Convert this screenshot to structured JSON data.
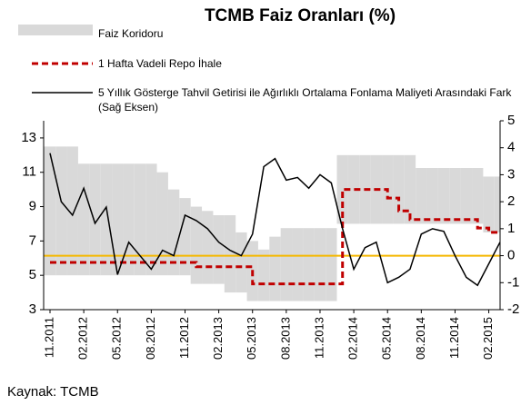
{
  "chart_data": {
    "type": "line",
    "title": "TCMB Faiz Oranları (%)",
    "source": "Kaynak: TCMB",
    "categories": [
      "11.2011",
      null,
      null,
      "02.2012",
      null,
      null,
      "05.2012",
      null,
      null,
      "08.2012",
      null,
      null,
      "11.2012",
      null,
      null,
      "02.2013",
      null,
      null,
      "05.2013",
      null,
      null,
      "08.2013",
      null,
      null,
      "11.2013",
      null,
      null,
      "02.2014",
      null,
      null,
      "05.2014",
      null,
      null,
      "08.2014",
      null,
      null,
      "11.2014",
      null,
      null,
      "02.2015",
      null
    ],
    "series": [
      {
        "name": "Faiz Koridoru",
        "kind": "band",
        "color": "#d9d9d9",
        "low": [
          5,
          5,
          5,
          5,
          5,
          5,
          5,
          5,
          5,
          5,
          5,
          5,
          5,
          4.5,
          4.5,
          4.5,
          4,
          4,
          3.5,
          3.5,
          3.5,
          3.5,
          3.5,
          3.5,
          3.5,
          3.5,
          8,
          8,
          8,
          8,
          8,
          8,
          8,
          8,
          8,
          8,
          8,
          8,
          8,
          7.5,
          7.5
        ],
        "high": [
          12.5,
          12.5,
          12.5,
          11.5,
          11.5,
          11.5,
          11.5,
          11.5,
          11.5,
          11.5,
          11,
          10,
          9.5,
          9,
          8.75,
          8.5,
          8.5,
          7.5,
          7,
          6.5,
          7.25,
          7.75,
          7.75,
          7.75,
          7.75,
          7.75,
          12,
          12,
          12,
          12,
          12,
          12,
          12,
          11.25,
          11.25,
          11.25,
          11.25,
          11.25,
          11.25,
          10.75,
          10.75
        ]
      },
      {
        "name": "1 Hafta Vadeli Repo İhale",
        "kind": "step",
        "color": "#c00000",
        "values": [
          5.75,
          5.75,
          5.75,
          5.75,
          5.75,
          5.75,
          5.75,
          5.75,
          5.75,
          5.75,
          5.75,
          5.75,
          5.75,
          5.5,
          5.5,
          5.5,
          5.5,
          5.5,
          4.5,
          4.5,
          4.5,
          4.5,
          4.5,
          4.5,
          4.5,
          4.5,
          10,
          10,
          10,
          10,
          9.5,
          8.75,
          8.25,
          8.25,
          8.25,
          8.25,
          8.25,
          8.25,
          7.75,
          7.5,
          7.5
        ]
      },
      {
        "name": "5 Yıllık Gösterge Tahvil Getirisi ile Ağırlıklı Ortalama Fonlama Maliyeti Arasındaki Fark (Sağ Eksen)",
        "kind": "line",
        "axis": "y2",
        "color": "#000000",
        "values": [
          3.8,
          2.0,
          1.5,
          2.5,
          1.2,
          1.8,
          -0.7,
          0.5,
          0.0,
          -0.5,
          0.2,
          0.0,
          1.5,
          1.3,
          1.0,
          0.5,
          0.2,
          0.0,
          0.8,
          3.3,
          3.6,
          2.8,
          2.9,
          2.5,
          3.0,
          2.7,
          1.0,
          -0.5,
          0.3,
          0.5,
          -1.0,
          -0.8,
          -0.5,
          0.8,
          1.0,
          0.9,
          0.0,
          -0.8,
          -1.1,
          -0.3,
          0.5
        ]
      }
    ],
    "reference_line": {
      "axis": "y2",
      "value": 0,
      "color": "#f5b800"
    },
    "ylim": [
      3,
      14
    ],
    "yticks": [
      3,
      5,
      7,
      9,
      11,
      13
    ],
    "y2lim": [
      -2,
      5
    ],
    "y2ticks": [
      -2,
      -1,
      0,
      1,
      2,
      3,
      4,
      5
    ]
  }
}
